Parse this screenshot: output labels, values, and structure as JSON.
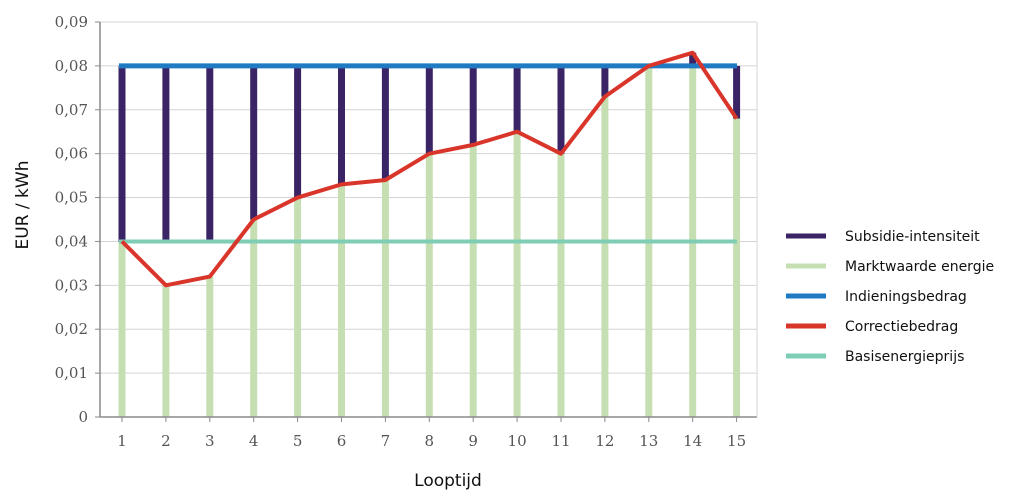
{
  "chart_data": {
    "type": "bar",
    "title": "",
    "xlabel": "Looptijd",
    "ylabel": "EUR / kWh",
    "categories": [
      "1",
      "2",
      "3",
      "4",
      "5",
      "6",
      "7",
      "8",
      "9",
      "10",
      "11",
      "12",
      "13",
      "14",
      "15"
    ],
    "yticks": [
      "0",
      "0,01",
      "0,02",
      "0,03",
      "0,04",
      "0,05",
      "0,06",
      "0,07",
      "0,08",
      "0,09"
    ],
    "ylim": [
      0,
      0.09
    ],
    "grid": "horizontal",
    "legend_position": "right",
    "series": [
      {
        "name": "Subsidie-intensiteit",
        "kind": "bar-floating",
        "color": "#3b2466",
        "from": [
          0.04,
          0.04,
          0.04,
          0.045,
          0.05,
          0.053,
          0.054,
          0.06,
          0.062,
          0.065,
          0.06,
          0.073,
          0.08,
          0.083,
          0.068
        ],
        "to": [
          0.08,
          0.08,
          0.08,
          0.08,
          0.08,
          0.08,
          0.08,
          0.08,
          0.08,
          0.08,
          0.08,
          0.08,
          0.08,
          0.08,
          0.08
        ]
      },
      {
        "name": "Marktwaarde energie",
        "kind": "bar",
        "color": "#c5dfb3",
        "values": [
          0.04,
          0.03,
          0.032,
          0.045,
          0.05,
          0.053,
          0.054,
          0.06,
          0.062,
          0.065,
          0.06,
          0.073,
          0.08,
          0.083,
          0.068
        ]
      },
      {
        "name": "Indieningsbedrag",
        "kind": "line",
        "color": "#1f7ac2",
        "values": [
          0.08,
          0.08,
          0.08,
          0.08,
          0.08,
          0.08,
          0.08,
          0.08,
          0.08,
          0.08,
          0.08,
          0.08,
          0.08,
          0.08,
          0.08
        ]
      },
      {
        "name": "Correctiebedrag",
        "kind": "line",
        "color": "#d9352a",
        "values": [
          0.04,
          0.03,
          0.032,
          0.045,
          0.05,
          0.053,
          0.054,
          0.06,
          0.062,
          0.065,
          0.06,
          0.073,
          0.08,
          0.083,
          0.068
        ]
      },
      {
        "name": "Basisenergieprijs",
        "kind": "line",
        "color": "#7fcdb5",
        "values": [
          0.04,
          0.04,
          0.04,
          0.04,
          0.04,
          0.04,
          0.04,
          0.04,
          0.04,
          0.04,
          0.04,
          0.04,
          0.04,
          0.04,
          0.04
        ]
      }
    ]
  }
}
